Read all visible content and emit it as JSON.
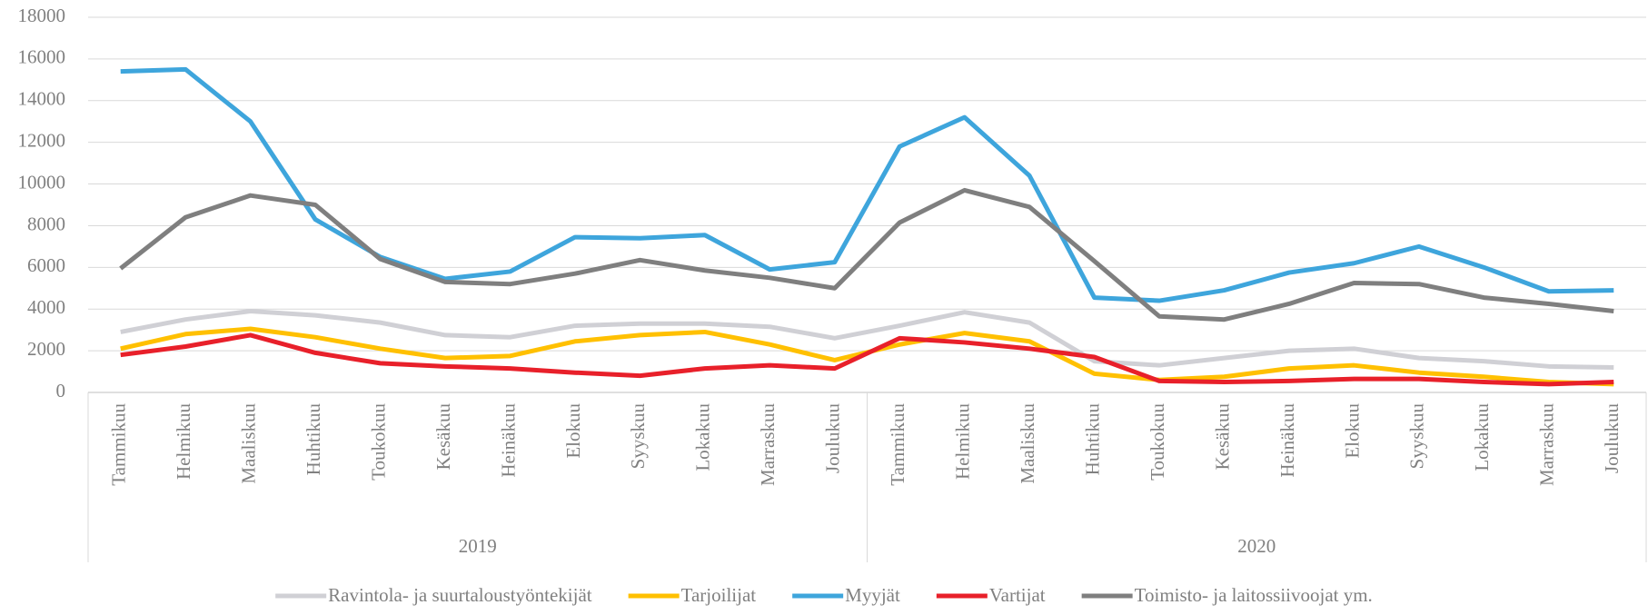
{
  "chart_data": {
    "type": "line",
    "categories": [
      "Tammikuu",
      "Helmikuu",
      "Maaliskuu",
      "Huhtikuu",
      "Toukokuu",
      "Kesäkuu",
      "Heinäkuu",
      "Elokuu",
      "Syyskuu",
      "Lokakuu",
      "Marraskuu",
      "Joulukuu",
      "Tammikuu",
      "Helmikuu",
      "Maaliskuu",
      "Huhtikuu",
      "Toukokuu",
      "Kesäkuu",
      "Heinäkuu",
      "Elokuu",
      "Syyskuu",
      "Lokakuu",
      "Marraskuu",
      "Joulukuu"
    ],
    "groups": [
      "2019",
      "2020"
    ],
    "series": [
      {
        "name": "Ravintola- ja suurtaloustyöntekijät",
        "color": "#d0d0d5",
        "values": [
          2900,
          3500,
          3900,
          3700,
          3350,
          2750,
          2650,
          3200,
          3300,
          3300,
          3150,
          2600,
          3200,
          3850,
          3350,
          1500,
          1300,
          1650,
          2000,
          2100,
          1650,
          1500,
          1250,
          1200
        ]
      },
      {
        "name": "Tarjoilijat",
        "color": "#ffc000",
        "values": [
          2100,
          2800,
          3050,
          2650,
          2100,
          1650,
          1750,
          2450,
          2750,
          2900,
          2300,
          1550,
          2300,
          2850,
          2450,
          900,
          600,
          750,
          1150,
          1300,
          950,
          750,
          500,
          400
        ]
      },
      {
        "name": "Myyjät",
        "color": "#3ea5dc",
        "values": [
          15400,
          15500,
          13000,
          8300,
          6500,
          5450,
          5800,
          7450,
          7400,
          7550,
          5900,
          6250,
          11800,
          13200,
          10400,
          4550,
          4400,
          4900,
          5750,
          6200,
          7000,
          6000,
          4850,
          4900
        ]
      },
      {
        "name": "Vartijat",
        "color": "#e8202a",
        "values": [
          1800,
          2200,
          2750,
          1900,
          1400,
          1250,
          1150,
          950,
          800,
          1150,
          1300,
          1150,
          2600,
          2400,
          2100,
          1700,
          550,
          500,
          550,
          650,
          650,
          500,
          400,
          500
        ]
      },
      {
        "name": "Toimisto- ja laitossiivoojat ym.",
        "color": "#7f7f7f",
        "values": [
          5950,
          8400,
          9450,
          9000,
          6400,
          5300,
          5200,
          5700,
          6350,
          5850,
          5500,
          5000,
          8150,
          9700,
          8900,
          6300,
          3650,
          3500,
          4250,
          5250,
          5200,
          4550,
          4250,
          3900
        ]
      }
    ],
    "ylim": [
      0,
      18000
    ],
    "yticks": [
      0,
      2000,
      4000,
      6000,
      8000,
      10000,
      12000,
      14000,
      16000,
      18000
    ],
    "grid": true,
    "legend": "bottom"
  }
}
